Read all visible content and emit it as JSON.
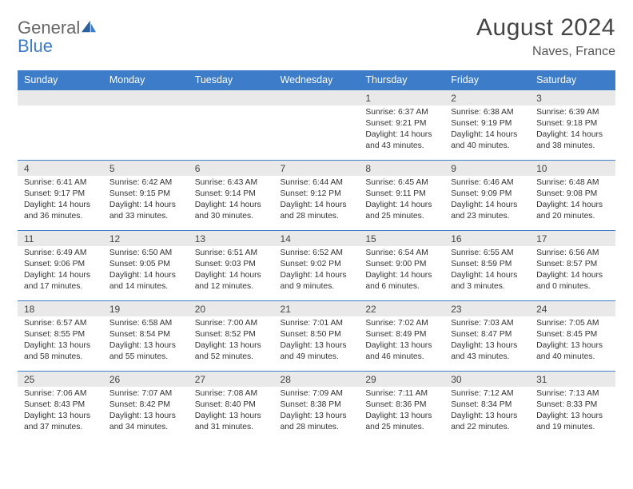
{
  "logo": {
    "general": "General",
    "blue": "Blue"
  },
  "title": "August 2024",
  "location": "Naves, France",
  "colors": {
    "header_bg": "#3d7cc9",
    "header_text": "#ffffff",
    "daynum_bg": "#e9e9e9",
    "border": "#3d7cc9",
    "body_text": "#333333",
    "page_bg": "#ffffff"
  },
  "weekdays": [
    "Sunday",
    "Monday",
    "Tuesday",
    "Wednesday",
    "Thursday",
    "Friday",
    "Saturday"
  ],
  "weeks": [
    [
      null,
      null,
      null,
      null,
      {
        "n": "1",
        "sr": "6:37 AM",
        "ss": "9:21 PM",
        "dl": "14 hours and 43 minutes."
      },
      {
        "n": "2",
        "sr": "6:38 AM",
        "ss": "9:19 PM",
        "dl": "14 hours and 40 minutes."
      },
      {
        "n": "3",
        "sr": "6:39 AM",
        "ss": "9:18 PM",
        "dl": "14 hours and 38 minutes."
      }
    ],
    [
      {
        "n": "4",
        "sr": "6:41 AM",
        "ss": "9:17 PM",
        "dl": "14 hours and 36 minutes."
      },
      {
        "n": "5",
        "sr": "6:42 AM",
        "ss": "9:15 PM",
        "dl": "14 hours and 33 minutes."
      },
      {
        "n": "6",
        "sr": "6:43 AM",
        "ss": "9:14 PM",
        "dl": "14 hours and 30 minutes."
      },
      {
        "n": "7",
        "sr": "6:44 AM",
        "ss": "9:12 PM",
        "dl": "14 hours and 28 minutes."
      },
      {
        "n": "8",
        "sr": "6:45 AM",
        "ss": "9:11 PM",
        "dl": "14 hours and 25 minutes."
      },
      {
        "n": "9",
        "sr": "6:46 AM",
        "ss": "9:09 PM",
        "dl": "14 hours and 23 minutes."
      },
      {
        "n": "10",
        "sr": "6:48 AM",
        "ss": "9:08 PM",
        "dl": "14 hours and 20 minutes."
      }
    ],
    [
      {
        "n": "11",
        "sr": "6:49 AM",
        "ss": "9:06 PM",
        "dl": "14 hours and 17 minutes."
      },
      {
        "n": "12",
        "sr": "6:50 AM",
        "ss": "9:05 PM",
        "dl": "14 hours and 14 minutes."
      },
      {
        "n": "13",
        "sr": "6:51 AM",
        "ss": "9:03 PM",
        "dl": "14 hours and 12 minutes."
      },
      {
        "n": "14",
        "sr": "6:52 AM",
        "ss": "9:02 PM",
        "dl": "14 hours and 9 minutes."
      },
      {
        "n": "15",
        "sr": "6:54 AM",
        "ss": "9:00 PM",
        "dl": "14 hours and 6 minutes."
      },
      {
        "n": "16",
        "sr": "6:55 AM",
        "ss": "8:59 PM",
        "dl": "14 hours and 3 minutes."
      },
      {
        "n": "17",
        "sr": "6:56 AM",
        "ss": "8:57 PM",
        "dl": "14 hours and 0 minutes."
      }
    ],
    [
      {
        "n": "18",
        "sr": "6:57 AM",
        "ss": "8:55 PM",
        "dl": "13 hours and 58 minutes."
      },
      {
        "n": "19",
        "sr": "6:58 AM",
        "ss": "8:54 PM",
        "dl": "13 hours and 55 minutes."
      },
      {
        "n": "20",
        "sr": "7:00 AM",
        "ss": "8:52 PM",
        "dl": "13 hours and 52 minutes."
      },
      {
        "n": "21",
        "sr": "7:01 AM",
        "ss": "8:50 PM",
        "dl": "13 hours and 49 minutes."
      },
      {
        "n": "22",
        "sr": "7:02 AM",
        "ss": "8:49 PM",
        "dl": "13 hours and 46 minutes."
      },
      {
        "n": "23",
        "sr": "7:03 AM",
        "ss": "8:47 PM",
        "dl": "13 hours and 43 minutes."
      },
      {
        "n": "24",
        "sr": "7:05 AM",
        "ss": "8:45 PM",
        "dl": "13 hours and 40 minutes."
      }
    ],
    [
      {
        "n": "25",
        "sr": "7:06 AM",
        "ss": "8:43 PM",
        "dl": "13 hours and 37 minutes."
      },
      {
        "n": "26",
        "sr": "7:07 AM",
        "ss": "8:42 PM",
        "dl": "13 hours and 34 minutes."
      },
      {
        "n": "27",
        "sr": "7:08 AM",
        "ss": "8:40 PM",
        "dl": "13 hours and 31 minutes."
      },
      {
        "n": "28",
        "sr": "7:09 AM",
        "ss": "8:38 PM",
        "dl": "13 hours and 28 minutes."
      },
      {
        "n": "29",
        "sr": "7:11 AM",
        "ss": "8:36 PM",
        "dl": "13 hours and 25 minutes."
      },
      {
        "n": "30",
        "sr": "7:12 AM",
        "ss": "8:34 PM",
        "dl": "13 hours and 22 minutes."
      },
      {
        "n": "31",
        "sr": "7:13 AM",
        "ss": "8:33 PM",
        "dl": "13 hours and 19 minutes."
      }
    ]
  ],
  "labels": {
    "sunrise": "Sunrise:",
    "sunset": "Sunset:",
    "daylight": "Daylight:"
  }
}
